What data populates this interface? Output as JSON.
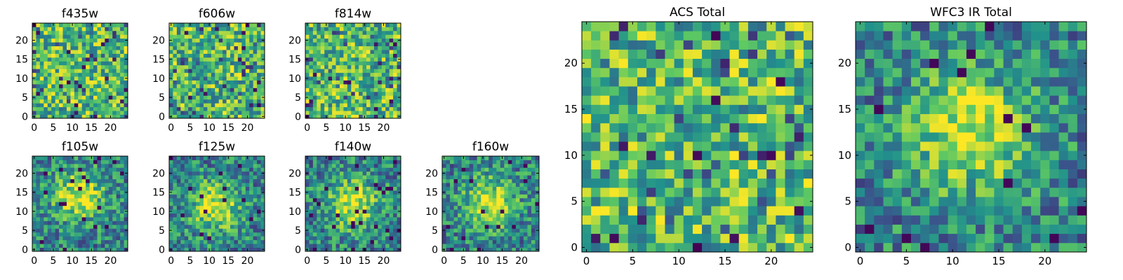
{
  "figure": {
    "colormap": [
      "#440154",
      "#3b528b",
      "#21918c",
      "#5ec962",
      "#fde725"
    ]
  },
  "chart_data": [
    {
      "type": "heatmap",
      "title": "f435w",
      "grid_size": 25,
      "xlim": [
        -0.5,
        24.5
      ],
      "ylim": [
        -0.5,
        24.5
      ],
      "xticks": [
        0,
        5,
        10,
        15,
        20
      ],
      "yticks": [
        0,
        5,
        10,
        15,
        20
      ],
      "pattern": "uniform noise",
      "seed": 11
    },
    {
      "type": "heatmap",
      "title": "f606w",
      "grid_size": 25,
      "xlim": [
        -0.5,
        24.5
      ],
      "ylim": [
        -0.5,
        24.5
      ],
      "xticks": [
        0,
        5,
        10,
        15,
        20
      ],
      "yticks": [
        0,
        5,
        10,
        15,
        20
      ],
      "pattern": "uniform noise",
      "seed": 23
    },
    {
      "type": "heatmap",
      "title": "f814w",
      "grid_size": 25,
      "xlim": [
        -0.5,
        24.5
      ],
      "ylim": [
        -0.5,
        24.5
      ],
      "xticks": [
        0,
        5,
        10,
        15,
        20
      ],
      "yticks": [
        0,
        5,
        10,
        15,
        20
      ],
      "pattern": "uniform noise",
      "seed": 37
    },
    {
      "type": "heatmap",
      "title": "f105w",
      "grid_size": 25,
      "xlim": [
        -0.5,
        24.5
      ],
      "ylim": [
        -0.5,
        24.5
      ],
      "xticks": [
        0,
        5,
        10,
        15,
        20
      ],
      "yticks": [
        0,
        5,
        10,
        15,
        20
      ],
      "pattern": "central bright source with noise",
      "seed": 41
    },
    {
      "type": "heatmap",
      "title": "f125w",
      "grid_size": 25,
      "xlim": [
        -0.5,
        24.5
      ],
      "ylim": [
        -0.5,
        24.5
      ],
      "xticks": [
        0,
        5,
        10,
        15,
        20
      ],
      "yticks": [
        0,
        5,
        10,
        15,
        20
      ],
      "pattern": "central bright source with noise",
      "seed": 53
    },
    {
      "type": "heatmap",
      "title": "f140w",
      "grid_size": 25,
      "xlim": [
        -0.5,
        24.5
      ],
      "ylim": [
        -0.5,
        24.5
      ],
      "xticks": [
        0,
        5,
        10,
        15,
        20
      ],
      "yticks": [
        0,
        5,
        10,
        15,
        20
      ],
      "pattern": "central bright source with noise",
      "seed": 67
    },
    {
      "type": "heatmap",
      "title": "f160w",
      "grid_size": 25,
      "xlim": [
        -0.5,
        24.5
      ],
      "ylim": [
        -0.5,
        24.5
      ],
      "xticks": [
        0,
        5,
        10,
        15,
        20
      ],
      "yticks": [
        0,
        5,
        10,
        15,
        20
      ],
      "pattern": "central bright source with noise",
      "seed": 79
    },
    {
      "type": "heatmap",
      "title": "ACS Total",
      "grid_size": 25,
      "xlim": [
        -0.5,
        24.5
      ],
      "ylim": [
        -0.5,
        24.5
      ],
      "xticks": [
        0,
        5,
        10,
        15,
        20
      ],
      "yticks": [
        0,
        5,
        10,
        15,
        20
      ],
      "pattern": "noise",
      "seed": 97
    },
    {
      "type": "heatmap",
      "title": "WFC3 IR Total",
      "grid_size": 25,
      "xlim": [
        -0.5,
        24.5
      ],
      "ylim": [
        -0.5,
        24.5
      ],
      "xticks": [
        0,
        5,
        10,
        15,
        20
      ],
      "yticks": [
        0,
        5,
        10,
        15,
        20
      ],
      "pattern": "central bright source with noise",
      "seed": 113
    }
  ]
}
